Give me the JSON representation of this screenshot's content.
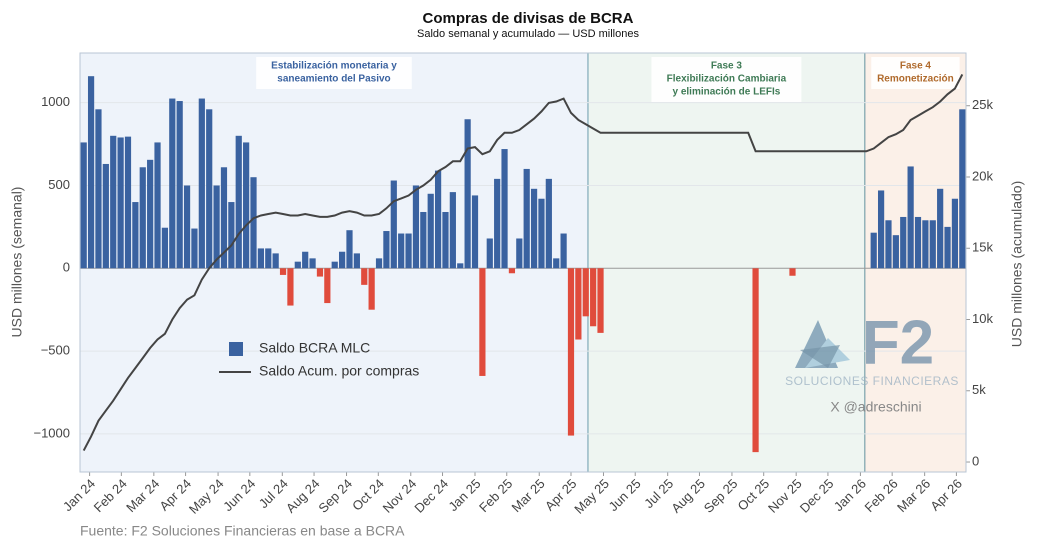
{
  "chart_data": {
    "type": "bar_line",
    "title": "Compras de divisas de BCRA",
    "subtitle": "Saldo semanal y acumulado — USD millones",
    "y_label": "USD millones (semanal)",
    "y2_label": "USD millones (acumulado)",
    "source": "Fuente: F2 Soluciones Financieras en base a BCRA",
    "watermark": {
      "logo": "F2",
      "name": "SOLUCIONES FINANCIERAS",
      "handle": "X @adreschini"
    },
    "categories": [
      null,
      null,
      null,
      null,
      null,
      null,
      null,
      null,
      null,
      null,
      null,
      null,
      null,
      null,
      null,
      null,
      null,
      null,
      null,
      null,
      null,
      null,
      null,
      null,
      null,
      null,
      null,
      null,
      null,
      null,
      null,
      null,
      null,
      null,
      null,
      null,
      null,
      null,
      null,
      null,
      null,
      null,
      null,
      null,
      null,
      null,
      null,
      null,
      null,
      null,
      null,
      null,
      null,
      null,
      null,
      null,
      null,
      null,
      null,
      null,
      null,
      null,
      null,
      null,
      null,
      null,
      null,
      null,
      null,
      null,
      null,
      null,
      null,
      null,
      null,
      null,
      null,
      null,
      null,
      null,
      null,
      null,
      null,
      null,
      null,
      null,
      null,
      null,
      null,
      null,
      null,
      null,
      null,
      null,
      null,
      null,
      null,
      null,
      null,
      null,
      null,
      null,
      null,
      null,
      null,
      null,
      null,
      null,
      null,
      null,
      null,
      null,
      null,
      null,
      null,
      null,
      null,
      null,
      null,
      null
    ],
    "series": [
      {
        "name": "Saldo BCRA MLC",
        "color": "#3a62a0",
        "negative_color": "#e04b3c",
        "values": [
          760,
          1160,
          960,
          630,
          800,
          790,
          795,
          400,
          610,
          655,
          760,
          245,
          1025,
          1010,
          500,
          240,
          1025,
          960,
          500,
          610,
          400,
          800,
          760,
          550,
          120,
          120,
          90,
          -40,
          -225,
          40,
          100,
          60,
          -50,
          -210,
          40,
          100,
          230,
          90,
          -100,
          -250,
          60,
          225,
          530,
          210,
          210,
          500,
          340,
          450,
          590,
          340,
          460,
          30,
          900,
          440,
          -650,
          180,
          540,
          720,
          -30,
          180,
          600,
          480,
          420,
          540,
          60,
          210,
          -1010,
          -430,
          -290,
          -350,
          -390,
          0,
          0,
          0,
          0,
          0,
          0,
          0,
          0,
          0,
          0,
          0,
          0,
          0,
          0,
          0,
          0,
          0,
          0,
          0,
          0,
          -1110,
          0,
          0,
          0,
          0,
          -45,
          0,
          0,
          0,
          0,
          0,
          0,
          0,
          0,
          0,
          0,
          215,
          470,
          290,
          200,
          310,
          615,
          310,
          290,
          290,
          480,
          250,
          420,
          960
        ]
      },
      {
        "name": "Saldo Acum. por compras",
        "color": "#444444",
        "axis": "y2",
        "values": [
          800,
          1800,
          2900,
          3600,
          4300,
          5100,
          5900,
          6600,
          7300,
          8000,
          8600,
          9000,
          10000,
          10800,
          11400,
          11700,
          12800,
          13600,
          14200,
          14700,
          15200,
          16000,
          16600,
          17100,
          17300,
          17400,
          17500,
          17400,
          17300,
          17300,
          17400,
          17300,
          17200,
          17200,
          17300,
          17500,
          17600,
          17500,
          17300,
          17300,
          17400,
          17800,
          18300,
          18500,
          18700,
          19100,
          19400,
          19800,
          20400,
          20700,
          21100,
          21100,
          22000,
          22100,
          21600,
          21800,
          22600,
          23100,
          23100,
          23300,
          23700,
          24100,
          24600,
          25200,
          25300,
          25500,
          24500,
          24000,
          23700,
          23400,
          23100,
          23100,
          23100,
          23100,
          23100,
          23100,
          23100,
          23100,
          23100,
          23100,
          23100,
          23100,
          23100,
          23100,
          23100,
          23100,
          23100,
          23100,
          23100,
          23100,
          23100,
          21800,
          21800,
          21800,
          21800,
          21800,
          21800,
          21800,
          21800,
          21800,
          21800,
          21800,
          21800,
          21800,
          21800,
          21800,
          21800,
          22000,
          22400,
          22800,
          23000,
          23300,
          24000,
          24300,
          24600,
          24900,
          25300,
          25800,
          26200,
          27200
        ]
      }
    ],
    "phases": [
      {
        "label": [
          "Estabilización monetaria y",
          "saneamiento del Pasivo"
        ],
        "start": -0.5,
        "end": 68.3,
        "color": "#3a62a0",
        "fill": "#eef3fa"
      },
      {
        "label": [
          "Fase 3",
          "Flexibilización Cambiaria",
          "y eliminación de LEFIs"
        ],
        "start": 68.3,
        "end": 105.8,
        "color": "#3e7a55",
        "fill": "#eef5f1"
      },
      {
        "label": [
          "Fase 4",
          "Remonetización"
        ],
        "start": 105.8,
        "end": 119.5,
        "color": "#b06a2c",
        "fill": "#fbf0e8"
      }
    ],
    "ylim": [
      -1230,
      1300
    ],
    "yticks": [
      {
        "value": -1000,
        "label": "−1000"
      },
      {
        "value": -500,
        "label": "−500"
      },
      0,
      500,
      1000
    ],
    "y2lim": [
      -700,
      28700
    ],
    "y2ticks": [
      0,
      {
        "value": 5000,
        "label": "5k"
      },
      {
        "value": 10000,
        "label": "10k"
      },
      {
        "value": 15000,
        "label": "15k"
      },
      {
        "value": 20000,
        "label": "20k"
      },
      {
        "value": 25000,
        "label": "25k"
      }
    ],
    "xticks": [
      {
        "value": 0.8,
        "label": "Jan 24"
      },
      {
        "value": 5.1,
        "label": "Feb 24"
      },
      {
        "value": 9.5,
        "label": "Mar 24"
      },
      {
        "value": 13.8,
        "label": "Apr 24"
      },
      {
        "value": 18.2,
        "label": "May 24"
      },
      {
        "value": 22.5,
        "label": "Jun 24"
      },
      {
        "value": 26.9,
        "label": "Jul 24"
      },
      {
        "value": 31.2,
        "label": "Aug 24"
      },
      {
        "value": 35.6,
        "label": "Sep 24"
      },
      {
        "value": 39.9,
        "label": "Oct 24"
      },
      {
        "value": 44.3,
        "label": "Nov 24"
      },
      {
        "value": 48.6,
        "label": "Dec 24"
      },
      {
        "value": 53.0,
        "label": "Jan 25"
      },
      {
        "value": 57.3,
        "label": "Feb 25"
      },
      {
        "value": 61.7,
        "label": "Mar 25"
      },
      {
        "value": 66.0,
        "label": "Apr 25"
      },
      {
        "value": 70.4,
        "label": "May 25"
      },
      {
        "value": 74.7,
        "label": "Jun 25"
      },
      {
        "value": 79.1,
        "label": "Jul 25"
      },
      {
        "value": 83.4,
        "label": "Aug 25"
      },
      {
        "value": 87.8,
        "label": "Sep 25"
      },
      {
        "value": 92.1,
        "label": "Oct 25"
      },
      {
        "value": 96.5,
        "label": "Nov 25"
      },
      {
        "value": 100.8,
        "label": "Dec 25"
      },
      {
        "value": 105.2,
        "label": "Jan 26"
      },
      {
        "value": 109.5,
        "label": "Feb 26"
      },
      {
        "value": 113.9,
        "label": "Mar 26"
      },
      {
        "value": 118.2,
        "label": "Apr 26"
      }
    ],
    "grid": true,
    "legend": "center-left"
  }
}
